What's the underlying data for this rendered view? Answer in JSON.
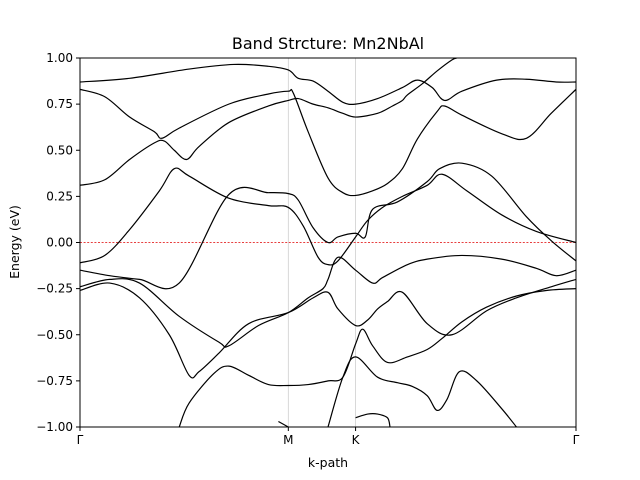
{
  "chart_data": {
    "type": "line",
    "title": "Band Strcture: Mn2NbAl",
    "xlabel": "k-path",
    "ylabel": "Energy (eV)",
    "ylim": [
      -1.0,
      1.0
    ],
    "xlim": [
      0,
      1
    ],
    "kpoints": [
      {
        "label": "Γ",
        "x": 0.0
      },
      {
        "label": "M",
        "x": 0.42
      },
      {
        "label": "K",
        "x": 0.5556
      },
      {
        "label": "Γ",
        "x": 1.0
      }
    ],
    "yticks": [
      "−1.00",
      "−0.75",
      "−0.50",
      "−0.25",
      "0.00",
      "0.25",
      "0.50",
      "0.75",
      "1.00"
    ],
    "ytick_values": [
      -1.0,
      -0.75,
      -0.5,
      -0.25,
      0.0,
      0.25,
      0.5,
      0.75,
      1.0
    ],
    "fermi_level": 0.0,
    "grid": "vertical lines at high-symmetry points",
    "series": [
      {
        "values": [
          [
            0,
            0.87
          ],
          [
            0.1,
            0.89
          ],
          [
            0.22,
            0.94
          ],
          [
            0.31,
            0.965
          ],
          [
            0.38,
            0.955
          ],
          [
            0.42,
            0.935
          ],
          [
            0.44,
            0.89
          ],
          [
            0.47,
            0.875
          ],
          [
            0.5,
            0.82
          ],
          [
            0.53,
            0.76
          ],
          [
            0.5556,
            0.75
          ],
          [
            0.6,
            0.78
          ],
          [
            0.65,
            0.84
          ],
          [
            0.68,
            0.88
          ],
          [
            0.71,
            0.84
          ],
          [
            0.735,
            0.77
          ],
          [
            0.77,
            0.82
          ],
          [
            0.84,
            0.88
          ],
          [
            0.9,
            0.885
          ],
          [
            0.96,
            0.87
          ],
          [
            1,
            0.87
          ]
        ]
      },
      {
        "values": [
          [
            0,
            0.83
          ],
          [
            0.05,
            0.79
          ],
          [
            0.1,
            0.68
          ],
          [
            0.15,
            0.6
          ],
          [
            0.165,
            0.565
          ],
          [
            0.2,
            0.62
          ],
          [
            0.3,
            0.75
          ],
          [
            0.38,
            0.805
          ],
          [
            0.42,
            0.82
          ],
          [
            0.43,
            0.81
          ],
          [
            0.46,
            0.6
          ],
          [
            0.5,
            0.35
          ],
          [
            0.53,
            0.27
          ],
          [
            0.5556,
            0.255
          ],
          [
            0.59,
            0.28
          ],
          [
            0.62,
            0.32
          ],
          [
            0.65,
            0.4
          ],
          [
            0.68,
            0.56
          ],
          [
            0.72,
            0.71
          ],
          [
            0.735,
            0.74
          ],
          [
            0.77,
            0.69
          ],
          [
            0.85,
            0.59
          ],
          [
            0.9,
            0.565
          ],
          [
            0.95,
            0.7
          ],
          [
            1,
            0.83
          ]
        ]
      },
      {
        "values": [
          [
            0,
            0.31
          ],
          [
            0.05,
            0.34
          ],
          [
            0.1,
            0.45
          ],
          [
            0.15,
            0.54
          ],
          [
            0.17,
            0.55
          ],
          [
            0.19,
            0.5
          ],
          [
            0.215,
            0.45
          ],
          [
            0.24,
            0.52
          ],
          [
            0.3,
            0.65
          ],
          [
            0.38,
            0.74
          ],
          [
            0.42,
            0.77
          ],
          [
            0.44,
            0.78
          ],
          [
            0.47,
            0.75
          ],
          [
            0.5,
            0.73
          ],
          [
            0.53,
            0.7
          ],
          [
            0.5556,
            0.68
          ],
          [
            0.6,
            0.7
          ],
          [
            0.63,
            0.74
          ],
          [
            0.65,
            0.77
          ],
          [
            0.66,
            0.8
          ],
          [
            0.69,
            0.86
          ],
          [
            0.72,
            0.93
          ],
          [
            0.75,
            0.99
          ],
          [
            0.76,
            1.0
          ]
        ]
      },
      {
        "values": [
          [
            0,
            -0.11
          ],
          [
            0.05,
            -0.07
          ],
          [
            0.1,
            0.07
          ],
          [
            0.16,
            0.28
          ],
          [
            0.19,
            0.4
          ],
          [
            0.22,
            0.36
          ],
          [
            0.3,
            0.24
          ],
          [
            0.38,
            0.2
          ],
          [
            0.42,
            0.19
          ],
          [
            0.45,
            0.09
          ],
          [
            0.48,
            -0.08
          ],
          [
            0.5,
            -0.12
          ],
          [
            0.52,
            -0.1
          ],
          [
            0.5556,
            0.03
          ],
          [
            0.58,
            0.12
          ],
          [
            0.61,
            0.19
          ],
          [
            0.65,
            0.25
          ],
          [
            0.7,
            0.31
          ],
          [
            0.73,
            0.37
          ],
          [
            0.78,
            0.28
          ],
          [
            0.85,
            0.15
          ],
          [
            0.92,
            0.06
          ],
          [
            1,
            0.0
          ]
        ]
      },
      {
        "values": [
          [
            0,
            -0.15
          ],
          [
            0.06,
            -0.18
          ],
          [
            0.12,
            -0.2
          ],
          [
            0.2,
            -0.22
          ],
          [
            0.3,
            0.26
          ],
          [
            0.38,
            0.27
          ],
          [
            0.42,
            0.265
          ],
          [
            0.44,
            0.23
          ],
          [
            0.47,
            0.08
          ],
          [
            0.5,
            0.0
          ],
          [
            0.52,
            0.03
          ],
          [
            0.5556,
            0.05
          ],
          [
            0.575,
            0.03
          ],
          [
            0.59,
            0.18
          ],
          [
            0.64,
            0.22
          ],
          [
            0.7,
            0.33
          ],
          [
            0.725,
            0.4
          ],
          [
            0.77,
            0.43
          ],
          [
            0.83,
            0.36
          ],
          [
            0.9,
            0.14
          ],
          [
            0.95,
            0.01
          ],
          [
            1,
            -0.1
          ]
        ]
      },
      {
        "values": [
          [
            0,
            -0.24
          ],
          [
            0.06,
            -0.2
          ],
          [
            0.12,
            -0.22
          ],
          [
            0.2,
            -0.4
          ],
          [
            0.28,
            -0.54
          ],
          [
            0.3,
            -0.56
          ],
          [
            0.36,
            -0.45
          ],
          [
            0.42,
            -0.38
          ],
          [
            0.46,
            -0.3
          ],
          [
            0.49,
            -0.25
          ],
          [
            0.5,
            -0.2
          ],
          [
            0.52,
            -0.08
          ],
          [
            0.5556,
            -0.15
          ],
          [
            0.59,
            -0.22
          ],
          [
            0.61,
            -0.19
          ],
          [
            0.66,
            -0.12
          ],
          [
            0.7,
            -0.09
          ],
          [
            0.77,
            -0.07
          ],
          [
            0.85,
            -0.09
          ],
          [
            0.92,
            -0.14
          ],
          [
            0.96,
            -0.18
          ],
          [
            1,
            -0.15
          ]
        ]
      },
      {
        "values": [
          [
            0,
            -0.26
          ],
          [
            0.06,
            -0.22
          ],
          [
            0.12,
            -0.3
          ],
          [
            0.18,
            -0.5
          ],
          [
            0.22,
            -0.72
          ],
          [
            0.24,
            -0.7
          ],
          [
            0.28,
            -0.6
          ],
          [
            0.34,
            -0.44
          ],
          [
            0.42,
            -0.38
          ],
          [
            0.47,
            -0.3
          ],
          [
            0.5,
            -0.27
          ],
          [
            0.52,
            -0.36
          ],
          [
            0.5556,
            -0.45
          ],
          [
            0.58,
            -0.42
          ],
          [
            0.6,
            -0.36
          ],
          [
            0.62,
            -0.32
          ],
          [
            0.65,
            -0.27
          ],
          [
            0.7,
            -0.44
          ],
          [
            0.75,
            -0.5
          ],
          [
            0.82,
            -0.37
          ],
          [
            0.88,
            -0.3
          ],
          [
            0.95,
            -0.24
          ],
          [
            1,
            -0.2
          ]
        ]
      },
      {
        "values": [
          [
            0.2,
            -1.0
          ],
          [
            0.22,
            -0.87
          ],
          [
            0.27,
            -0.71
          ],
          [
            0.3,
            -0.67
          ],
          [
            0.34,
            -0.72
          ],
          [
            0.38,
            -0.77
          ],
          [
            0.42,
            -0.775
          ],
          [
            0.46,
            -0.77
          ],
          [
            0.5,
            -0.75
          ],
          [
            0.53,
            -0.73
          ],
          [
            0.5556,
            -0.55
          ],
          [
            0.57,
            -0.47
          ],
          [
            0.59,
            -0.56
          ],
          [
            0.62,
            -0.65
          ],
          [
            0.66,
            -0.62
          ],
          [
            0.7,
            -0.58
          ],
          [
            0.73,
            -0.52
          ],
          [
            0.77,
            -0.43
          ],
          [
            0.82,
            -0.35
          ],
          [
            0.88,
            -0.29
          ],
          [
            0.94,
            -0.26
          ],
          [
            1,
            -0.25
          ]
        ]
      },
      {
        "values": [
          [
            0.5,
            -1.0
          ],
          [
            0.53,
            -0.73
          ],
          [
            0.5556,
            -0.62
          ],
          [
            0.6,
            -0.73
          ],
          [
            0.64,
            -0.76
          ],
          [
            0.67,
            -0.78
          ],
          [
            0.7,
            -0.83
          ],
          [
            0.72,
            -0.91
          ],
          [
            0.74,
            -0.85
          ],
          [
            0.765,
            -0.7
          ],
          [
            0.8,
            -0.75
          ],
          [
            0.85,
            -0.9
          ],
          [
            0.88,
            -1.0
          ]
        ]
      },
      {
        "values": [
          [
            0.4,
            -0.97
          ],
          [
            0.42,
            -1.0
          ]
        ]
      },
      {
        "values": [
          [
            0.5556,
            -0.95
          ],
          [
            0.58,
            -0.93
          ],
          [
            0.6,
            -0.93
          ],
          [
            0.62,
            -0.95
          ],
          [
            0.625,
            -1.0
          ]
        ]
      }
    ]
  }
}
